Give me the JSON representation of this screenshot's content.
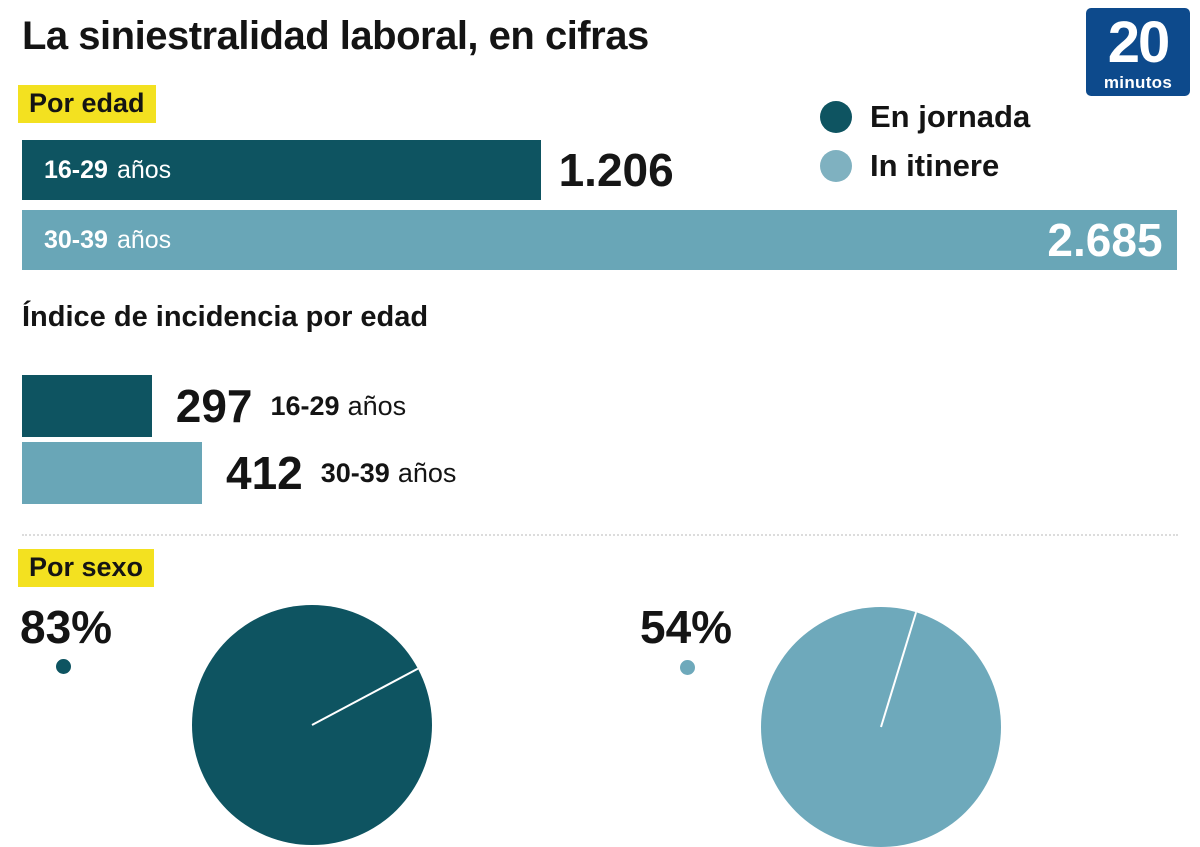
{
  "title": "La siniestralidad laboral, en cifras",
  "logo": {
    "number": "20",
    "word": "minutos"
  },
  "colors": {
    "darkTeal": "#0e5461",
    "lightBlue": "#69a6b7",
    "legendLightBlue": "#7fb1c0",
    "pieLightBlue": "#6ea9bb",
    "highlightYellow": "#f3e120",
    "logoBlue": "#0d4a8c",
    "ink": "#141414"
  },
  "legend": {
    "items": [
      {
        "label": "En jornada",
        "color": "#0e5461"
      },
      {
        "label": "In itinere",
        "color": "#7fb1c0"
      }
    ]
  },
  "age": {
    "heading": "Por edad",
    "bars": [
      {
        "range": "16-29",
        "unit": "años",
        "value": 1206,
        "display": "1.206"
      },
      {
        "range": "30-39",
        "unit": "años",
        "value": 2685,
        "display": "2.685"
      }
    ]
  },
  "incidence": {
    "heading": "Índice de incidencia por edad",
    "bars": [
      {
        "range": "16-29",
        "unit": "años",
        "value": 297,
        "display": "297"
      },
      {
        "range": "30-39",
        "unit": "años",
        "value": 412,
        "display": "412"
      }
    ]
  },
  "sex": {
    "heading": "Por sexo",
    "pies": [
      {
        "pct": "83%",
        "value": 83
      },
      {
        "pct": "54%",
        "value": 54
      }
    ]
  },
  "chart_data": [
    {
      "type": "bar",
      "title": "Por edad",
      "orientation": "horizontal",
      "categories": [
        "16-29 años",
        "30-39 años"
      ],
      "values": [
        1206,
        2685
      ],
      "legend": [
        "En jornada",
        "In itinere"
      ],
      "legend_position": "top-right",
      "grid": false
    },
    {
      "type": "bar",
      "title": "Índice de incidencia por edad",
      "orientation": "horizontal",
      "categories": [
        "16-29 años",
        "30-39 años"
      ],
      "values": [
        297,
        412
      ],
      "grid": false
    },
    {
      "type": "pie",
      "title": "Por sexo",
      "slices": [
        {
          "label": "83%",
          "value": 83
        },
        {
          "label": "",
          "value": 17
        }
      ]
    },
    {
      "type": "pie",
      "title": "Por sexo",
      "slices": [
        {
          "label": "54%",
          "value": 54
        },
        {
          "label": "",
          "value": 46
        }
      ]
    }
  ]
}
